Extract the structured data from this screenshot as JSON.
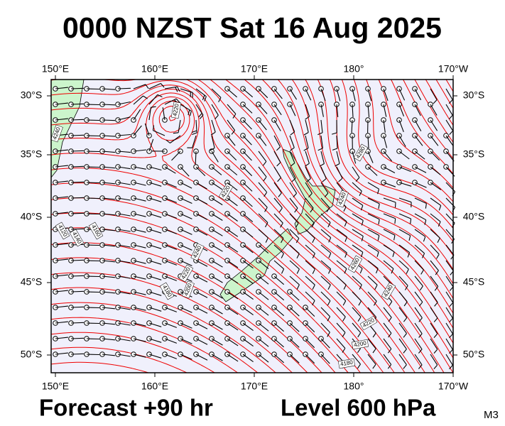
{
  "title": "0000 NZST Sat 16 Aug 2025",
  "map": {
    "lon_labels": [
      "150°E",
      "160°E",
      "170°E",
      "180°",
      "170°W"
    ],
    "lat_labels": [
      "30°S",
      "35°S",
      "40°S",
      "45°S",
      "50°S"
    ],
    "contour_labels": [
      "4220",
      "4240",
      "4280",
      "4240",
      "4220",
      "4120",
      "4140",
      "4160",
      "4180",
      "4200",
      "4220",
      "4240",
      "4260",
      "4240",
      "4220",
      "4200",
      "4180"
    ]
  },
  "footer": {
    "forecast": "Forecast +90 hr",
    "level": "Level 600 hPa",
    "code": "M3"
  }
}
